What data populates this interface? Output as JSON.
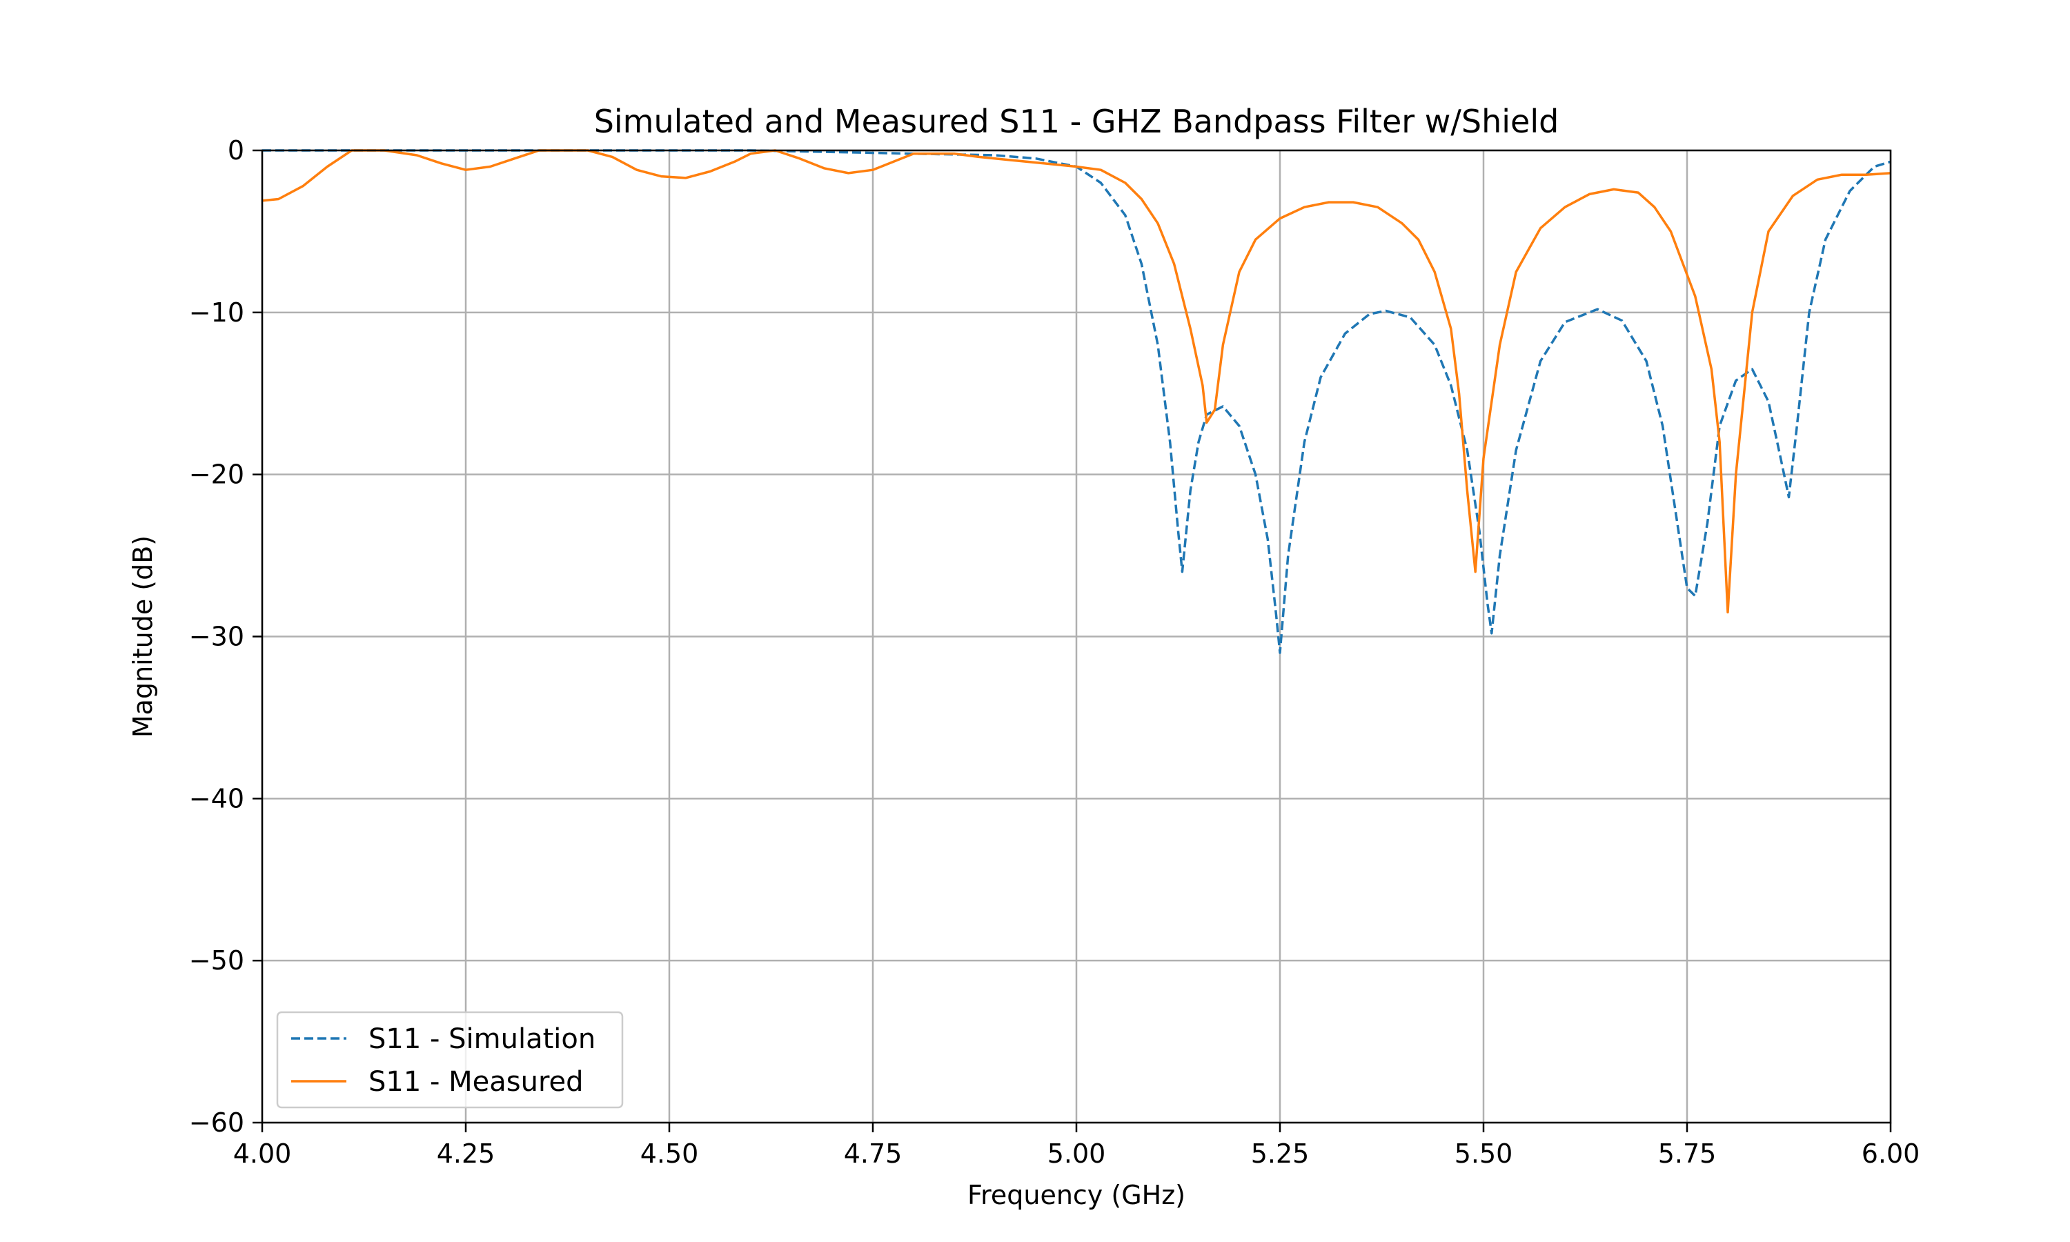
{
  "chart_data": {
    "type": "line",
    "title": "Simulated and Measured S11 - GHZ Bandpass Filter w/Shield",
    "xlabel": "Frequency (GHz)",
    "ylabel": "Magnitude (dB)",
    "xlim": [
      4.0,
      6.0
    ],
    "ylim": [
      -60,
      0
    ],
    "xticks": [
      4.0,
      4.25,
      4.5,
      4.75,
      5.0,
      5.25,
      5.5,
      5.75,
      6.0
    ],
    "xtick_labels": [
      "4.00",
      "4.25",
      "4.50",
      "4.75",
      "5.00",
      "5.25",
      "5.50",
      "5.75",
      "6.00"
    ],
    "yticks": [
      0,
      -10,
      -20,
      -30,
      -40,
      -50,
      -60
    ],
    "ytick_labels": [
      "0",
      "−10",
      "−20",
      "−30",
      "−40",
      "−50",
      "−60"
    ],
    "grid": true,
    "legend_position": "lower-left",
    "series": [
      {
        "name": "S11 - Simulation",
        "color": "#1f77b4",
        "style": "dashed",
        "x": [
          4.0,
          4.2,
          4.4,
          4.6,
          4.8,
          4.9,
          4.95,
          5.0,
          5.03,
          5.06,
          5.08,
          5.1,
          5.115,
          5.125,
          5.13,
          5.14,
          5.15,
          5.16,
          5.18,
          5.2,
          5.22,
          5.235,
          5.245,
          5.25,
          5.26,
          5.28,
          5.3,
          5.33,
          5.36,
          5.38,
          5.41,
          5.44,
          5.46,
          5.48,
          5.495,
          5.505,
          5.51,
          5.52,
          5.54,
          5.57,
          5.6,
          5.64,
          5.67,
          5.7,
          5.72,
          5.735,
          5.75,
          5.76,
          5.775,
          5.79,
          5.81,
          5.83,
          5.85,
          5.865,
          5.875,
          5.885,
          5.9,
          5.92,
          5.95,
          5.98,
          6.0
        ],
        "y": [
          0,
          0,
          0,
          0,
          -0.2,
          -0.3,
          -0.5,
          -1.0,
          -2.0,
          -4.0,
          -7.0,
          -12.0,
          -18.0,
          -23.5,
          -26.0,
          -21.0,
          -18.0,
          -16.3,
          -15.8,
          -17.0,
          -20.0,
          -24.0,
          -28.5,
          -31.0,
          -25.0,
          -18.0,
          -14.0,
          -11.3,
          -10.1,
          -9.9,
          -10.3,
          -12.0,
          -14.5,
          -18.5,
          -23.5,
          -28.0,
          -29.8,
          -25.0,
          -18.5,
          -13.0,
          -10.6,
          -9.8,
          -10.5,
          -13.0,
          -17.0,
          -22.0,
          -27.0,
          -27.5,
          -23.0,
          -17.0,
          -14.2,
          -13.5,
          -15.5,
          -19.0,
          -21.4,
          -17.0,
          -10.0,
          -5.5,
          -2.5,
          -1.0,
          -0.7
        ]
      },
      {
        "name": "S11 - Measured",
        "color": "#ff7f0e",
        "style": "solid",
        "x": [
          4.0,
          4.02,
          4.05,
          4.08,
          4.11,
          4.15,
          4.19,
          4.22,
          4.25,
          4.28,
          4.31,
          4.34,
          4.37,
          4.4,
          4.43,
          4.46,
          4.49,
          4.52,
          4.55,
          4.58,
          4.6,
          4.63,
          4.66,
          4.69,
          4.72,
          4.75,
          4.78,
          4.8,
          4.82,
          4.85,
          4.88,
          4.92,
          4.96,
          5.0,
          5.03,
          5.06,
          5.08,
          5.1,
          5.12,
          5.14,
          5.155,
          5.16,
          5.17,
          5.18,
          5.2,
          5.22,
          5.25,
          5.28,
          5.31,
          5.34,
          5.37,
          5.4,
          5.42,
          5.44,
          5.46,
          5.47,
          5.48,
          5.49,
          5.5,
          5.52,
          5.54,
          5.57,
          5.6,
          5.63,
          5.66,
          5.69,
          5.71,
          5.73,
          5.76,
          5.78,
          5.79,
          5.8,
          5.81,
          5.83,
          5.85,
          5.88,
          5.91,
          5.94,
          5.97,
          6.0
        ],
        "y": [
          -3.1,
          -3.0,
          -2.2,
          -1.0,
          0,
          0,
          -0.3,
          -0.8,
          -1.2,
          -1.0,
          -0.5,
          0,
          0,
          0,
          -0.4,
          -1.2,
          -1.6,
          -1.7,
          -1.3,
          -0.7,
          -0.2,
          0,
          -0.5,
          -1.1,
          -1.4,
          -1.2,
          -0.6,
          -0.2,
          -0.2,
          -0.2,
          -0.4,
          -0.6,
          -0.8,
          -1.0,
          -1.2,
          -2.0,
          -3.0,
          -4.5,
          -7.0,
          -11.0,
          -14.5,
          -16.8,
          -16.0,
          -12.0,
          -7.5,
          -5.5,
          -4.2,
          -3.5,
          -3.2,
          -3.2,
          -3.5,
          -4.5,
          -5.5,
          -7.5,
          -11.0,
          -15.0,
          -21.0,
          -26.0,
          -19.0,
          -12.0,
          -7.5,
          -4.8,
          -3.5,
          -2.7,
          -2.4,
          -2.6,
          -3.5,
          -5.0,
          -9.0,
          -13.5,
          -18.0,
          -28.5,
          -20.0,
          -10.0,
          -5.0,
          -2.8,
          -1.8,
          -1.5,
          -1.5,
          -1.4
        ]
      }
    ]
  }
}
